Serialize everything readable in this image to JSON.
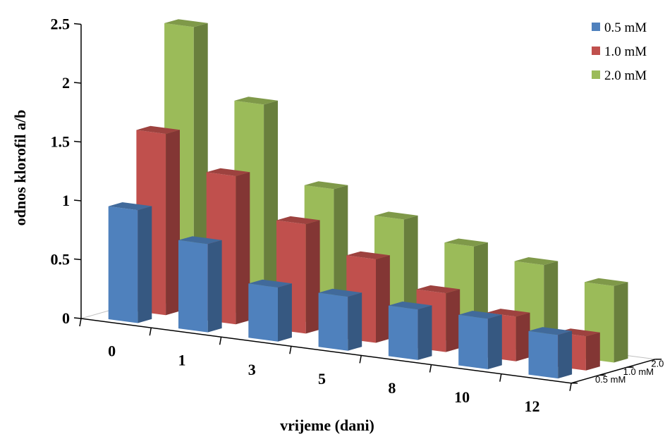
{
  "chart_data": {
    "type": "bar",
    "subtype": "3d-column",
    "categories": [
      "0",
      "1",
      "3",
      "5",
      "8",
      "10",
      "12"
    ],
    "series": [
      {
        "name": "0.5 mM",
        "values": [
          0.96,
          0.75,
          0.46,
          0.46,
          0.43,
          0.43,
          0.37
        ],
        "color": "#4f81bd"
      },
      {
        "name": "1.0 mM",
        "values": [
          1.54,
          1.26,
          0.93,
          0.71,
          0.5,
          0.38,
          0.29
        ],
        "color": "#c0504d"
      },
      {
        "name": "2.0 mM",
        "values": [
          2.38,
          1.8,
          1.16,
          0.98,
          0.83,
          0.75,
          0.65
        ],
        "color": "#9bbb59"
      }
    ],
    "depth_labels": [
      "0.5 mM",
      "1.0 mM",
      "2.0 mM"
    ],
    "xlabel": "vrijeme (dani)",
    "ylabel": "odnos klorofil a/b",
    "ylim": [
      0,
      2.5
    ],
    "yticks": [
      "0",
      "0.5",
      "1",
      "1.5",
      "2",
      "2.5"
    ],
    "legend_position": "top-right",
    "grid": false
  }
}
